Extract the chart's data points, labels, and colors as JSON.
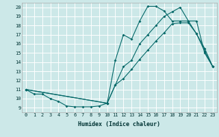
{
  "xlabel": "Humidex (Indice chaleur)",
  "bg_color": "#cce8e8",
  "grid_color": "#ffffff",
  "line_color": "#006666",
  "xlim": [
    -0.5,
    23.5
  ],
  "ylim": [
    8.5,
    20.5
  ],
  "xticks": [
    0,
    1,
    2,
    3,
    4,
    5,
    6,
    7,
    8,
    9,
    10,
    11,
    12,
    13,
    14,
    15,
    16,
    17,
    18,
    19,
    20,
    21,
    22,
    23
  ],
  "yticks": [
    9,
    10,
    11,
    12,
    13,
    14,
    15,
    16,
    17,
    18,
    19,
    20
  ],
  "line1_x": [
    0,
    1,
    2,
    3,
    4,
    5,
    6,
    7,
    8,
    9,
    10,
    11,
    12,
    13,
    14,
    15,
    16,
    17,
    18,
    19,
    20,
    21,
    22,
    23
  ],
  "line1_y": [
    11,
    10.5,
    10.5,
    10,
    9.7,
    9.2,
    9.1,
    9.1,
    9.1,
    9.2,
    9.5,
    11.5,
    12.2,
    13.2,
    14.3,
    15.3,
    16.3,
    17.2,
    18.2,
    18.3,
    18.3,
    17.1,
    15.5,
    13.5
  ],
  "line2_x": [
    0,
    10,
    11,
    12,
    13,
    14,
    15,
    16,
    17,
    18,
    19,
    20,
    21,
    22,
    23
  ],
  "line2_y": [
    11,
    9.5,
    14.2,
    17.0,
    16.5,
    18.5,
    20.1,
    20.1,
    19.6,
    18.5,
    18.5,
    18.5,
    17.1,
    15.2,
    13.5
  ],
  "line3_x": [
    0,
    10,
    11,
    12,
    13,
    14,
    15,
    16,
    17,
    18,
    19,
    20,
    21,
    22,
    23
  ],
  "line3_y": [
    11,
    9.5,
    11.5,
    13.5,
    14.2,
    16.0,
    17.0,
    18.0,
    19.0,
    19.5,
    20.0,
    18.5,
    18.5,
    15.0,
    13.5
  ]
}
